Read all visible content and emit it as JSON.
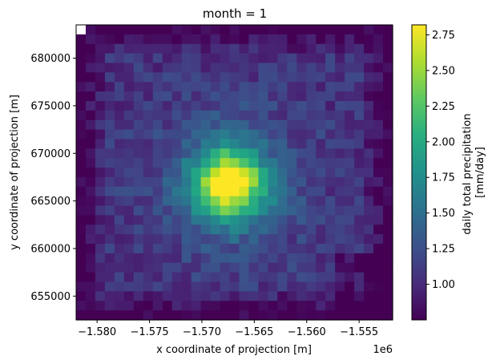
{
  "chart_data": {
    "type": "heatmap",
    "title": "month = 1",
    "xlabel": "x coordinate of projection [m]",
    "ylabel": "y coordinate of projection [m]",
    "x_offset_label": "1e6",
    "xlim": [
      -1.582,
      -1.5518
    ],
    "ylim": [
      652500,
      683500
    ],
    "x_tick_values": [
      -1.58,
      -1.575,
      -1.57,
      -1.565,
      -1.56,
      -1.555
    ],
    "x_tick_labels": [
      "−1.580",
      "−1.575",
      "−1.570",
      "−1.565",
      "−1.560",
      "−1.555"
    ],
    "y_tick_values": [
      655000,
      660000,
      665000,
      670000,
      675000,
      680000
    ],
    "y_tick_labels": [
      "655000",
      "660000",
      "665000",
      "670000",
      "675000",
      "680000"
    ],
    "colorbar": {
      "label_line1": "daily total precipitation",
      "label_line2": "[mm/day]",
      "vmin": 0.75,
      "vmax": 2.82,
      "tick_values": [
        1.0,
        1.25,
        1.5,
        1.75,
        2.0,
        2.25,
        2.5,
        2.75
      ],
      "tick_labels": [
        "1.00",
        "1.25",
        "1.50",
        "1.75",
        "2.00",
        "2.25",
        "2.50",
        "2.75"
      ],
      "colormap": "viridis"
    },
    "missing_cell_color": "#ffffff",
    "grid": false
  }
}
